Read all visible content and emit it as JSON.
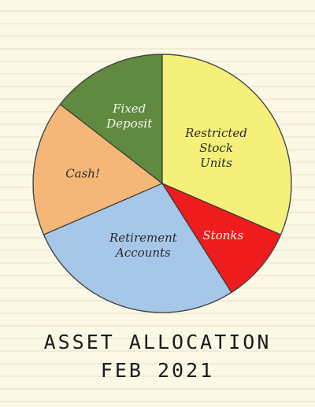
{
  "chart_data": {
    "type": "pie",
    "title": "ASSET ALLOCATION",
    "subtitle": "FEB 2021",
    "start_direction": "top, clockwise",
    "slices": [
      {
        "label": "Restricted Stock Units",
        "value": 31.5,
        "color": "#f4f07a",
        "label_class": "dark"
      },
      {
        "label": "Stonks",
        "value": 9.5,
        "color": "#ee1c1c",
        "label_class": "light"
      },
      {
        "label": "Retirement Accounts",
        "value": 27.5,
        "color": "#a7c7e8",
        "label_class": "dark"
      },
      {
        "label": "Cash!",
        "value": 17.0,
        "color": "#f5b777",
        "label_class": "dark"
      },
      {
        "label": "Fixed Deposit",
        "value": 14.5,
        "color": "#5f8a3f",
        "label_class": "light"
      }
    ]
  }
}
